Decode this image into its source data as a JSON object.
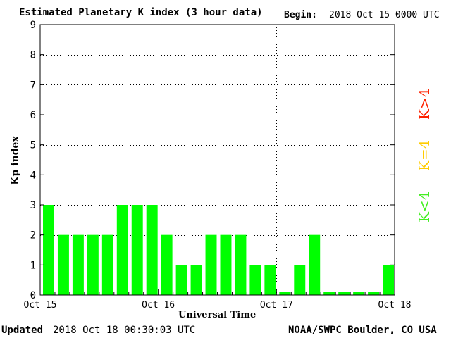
{
  "header": {
    "title": "Estimated Planetary K index (3 hour data)",
    "begin_label": "Begin:",
    "begin_value": "2018 Oct 15 0000 UTC"
  },
  "footer": {
    "updated_label": "Updated",
    "updated_value": "2018 Oct 18 00:30:03 UTC",
    "credit": "NOAA/SWPC Boulder, CO USA"
  },
  "legend": {
    "high": "K>4",
    "equal": "K=4",
    "low": "K<4"
  },
  "colors": {
    "low": "#00ff00",
    "equal": "#ffff00",
    "high": "#ff0000",
    "grid": "#000000"
  },
  "chart_data": {
    "type": "bar",
    "title": "Estimated Planetary K index (3 hour data)",
    "xlabel": "Universal Time",
    "ylabel": "Kp index",
    "ylim": [
      0,
      9
    ],
    "yticks": [
      0,
      1,
      2,
      3,
      4,
      5,
      6,
      7,
      8,
      9
    ],
    "xtick_labels": [
      "Oct 15",
      "Oct 16",
      "Oct 17",
      "Oct 18"
    ],
    "grid": true,
    "interval_hours": 3,
    "values": [
      3,
      2,
      2,
      2,
      2,
      3,
      3,
      3,
      2,
      1,
      1,
      2,
      2,
      2,
      1,
      1,
      0.1,
      1,
      2,
      0.1,
      0.1,
      0.1,
      0.1,
      1
    ]
  }
}
